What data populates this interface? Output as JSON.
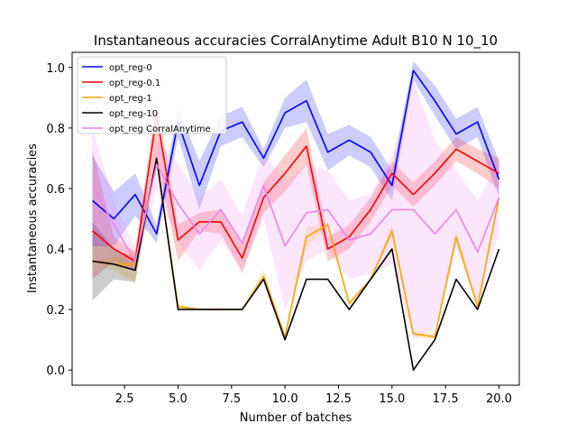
{
  "chart_data": {
    "type": "line",
    "title": "Instantaneous accuracies CorralAnytime Adult B10 N 10_10",
    "xlabel": "Number of batches",
    "ylabel": "Instantaneous accuracies",
    "xlim": [
      0.05,
      20.95
    ],
    "ylim": [
      -0.05,
      1.05
    ],
    "xticks": [
      2.5,
      5.0,
      7.5,
      10.0,
      12.5,
      15.0,
      17.5,
      20.0
    ],
    "xtick_labels": [
      "2.5",
      "5.0",
      "7.5",
      "10.0",
      "12.5",
      "15.0",
      "17.5",
      "20.0"
    ],
    "yticks": [
      0.0,
      0.2,
      0.4,
      0.6,
      0.8,
      1.0
    ],
    "ytick_labels": [
      "0.0",
      "0.2",
      "0.4",
      "0.6",
      "0.8",
      "1.0"
    ],
    "grid": false,
    "legend_position": "top-left",
    "x": [
      1,
      2,
      3,
      4,
      5,
      6,
      7,
      8,
      9,
      10,
      11,
      12,
      13,
      14,
      15,
      16,
      17,
      18,
      19,
      20
    ],
    "series": [
      {
        "name": "opt_reg-0",
        "color": "#0000ff",
        "values": [
          0.56,
          0.5,
          0.58,
          0.45,
          0.82,
          0.61,
          0.79,
          0.82,
          0.7,
          0.85,
          0.89,
          0.72,
          0.76,
          0.72,
          0.61,
          0.99,
          0.89,
          0.78,
          0.82,
          0.63
        ],
        "lower": [
          0.41,
          0.41,
          0.51,
          0.42,
          0.77,
          0.53,
          0.74,
          0.77,
          0.67,
          0.8,
          0.82,
          0.66,
          0.71,
          0.67,
          0.56,
          0.96,
          0.84,
          0.73,
          0.77,
          0.57
        ],
        "upper": [
          0.71,
          0.59,
          0.65,
          0.48,
          0.87,
          0.69,
          0.84,
          0.87,
          0.73,
          0.9,
          0.96,
          0.78,
          0.81,
          0.77,
          0.66,
          1.02,
          0.94,
          0.83,
          0.87,
          0.69
        ]
      },
      {
        "name": "opt_reg-0.1",
        "color": "#ff0000",
        "values": [
          0.46,
          0.4,
          0.36,
          0.84,
          0.43,
          0.49,
          0.49,
          0.37,
          0.57,
          0.65,
          0.74,
          0.4,
          0.44,
          0.53,
          0.65,
          0.58,
          0.65,
          0.73,
          0.69,
          0.65
        ],
        "lower": [
          0.3,
          0.36,
          0.33,
          0.7,
          0.36,
          0.46,
          0.45,
          0.32,
          0.52,
          0.59,
          0.68,
          0.36,
          0.4,
          0.49,
          0.61,
          0.54,
          0.61,
          0.69,
          0.65,
          0.6
        ],
        "upper": [
          0.73,
          0.44,
          0.39,
          0.9,
          0.48,
          0.52,
          0.53,
          0.42,
          0.62,
          0.71,
          0.8,
          0.44,
          0.48,
          0.57,
          0.69,
          0.62,
          0.69,
          0.77,
          0.73,
          0.7
        ]
      },
      {
        "name": "opt_reg-1",
        "color": "#ffa500",
        "values": [
          0.36,
          0.35,
          0.35,
          0.7,
          0.21,
          0.2,
          0.2,
          0.2,
          0.31,
          0.11,
          0.44,
          0.48,
          0.22,
          0.3,
          0.46,
          0.12,
          0.11,
          0.44,
          0.21,
          0.57
        ],
        "lower": [
          0.36,
          0.33,
          0.29,
          0.69,
          0.2,
          0.2,
          0.2,
          0.2,
          0.3,
          0.1,
          0.41,
          0.47,
          0.21,
          0.3,
          0.44,
          0.11,
          0.1,
          0.42,
          0.2,
          0.55
        ],
        "upper": [
          0.36,
          0.37,
          0.4,
          0.71,
          0.22,
          0.2,
          0.2,
          0.2,
          0.33,
          0.12,
          0.47,
          0.49,
          0.23,
          0.3,
          0.48,
          0.13,
          0.12,
          0.46,
          0.22,
          0.59
        ]
      },
      {
        "name": "opt_reg-10",
        "color": "#000000",
        "values": [
          0.36,
          0.35,
          0.33,
          0.7,
          0.2,
          0.2,
          0.2,
          0.2,
          0.3,
          0.1,
          0.3,
          0.3,
          0.2,
          0.3,
          0.4,
          0.0,
          0.1,
          0.3,
          0.2,
          0.4
        ],
        "lower": [
          0.23,
          0.3,
          0.29,
          0.7,
          0.2,
          0.2,
          0.2,
          0.2,
          0.3,
          0.1,
          0.3,
          0.3,
          0.2,
          0.3,
          0.4,
          0.0,
          0.1,
          0.3,
          0.2,
          0.4
        ],
        "upper": [
          0.49,
          0.4,
          0.37,
          0.7,
          0.2,
          0.2,
          0.2,
          0.2,
          0.3,
          0.1,
          0.3,
          0.3,
          0.2,
          0.3,
          0.4,
          0.0,
          0.1,
          0.3,
          0.2,
          0.4
        ]
      },
      {
        "name": "opt_reg CorralAnytime",
        "color": "#ee82ee",
        "values": [
          0.61,
          0.48,
          0.36,
          0.68,
          0.55,
          0.45,
          0.53,
          0.42,
          0.61,
          0.41,
          0.52,
          0.53,
          0.43,
          0.45,
          0.53,
          0.53,
          0.45,
          0.53,
          0.39,
          0.57
        ],
        "lower": [
          0.42,
          0.4,
          0.32,
          0.6,
          0.42,
          0.33,
          0.43,
          0.33,
          0.5,
          0.2,
          0.36,
          0.4,
          0.3,
          0.32,
          0.35,
          0.1,
          0.14,
          0.4,
          0.22,
          0.45
        ],
        "upper": [
          0.8,
          0.56,
          0.4,
          0.76,
          0.68,
          0.57,
          0.63,
          0.51,
          0.72,
          0.62,
          0.68,
          0.66,
          0.56,
          0.58,
          0.71,
          0.96,
          0.76,
          0.66,
          0.56,
          0.69
        ]
      }
    ]
  }
}
